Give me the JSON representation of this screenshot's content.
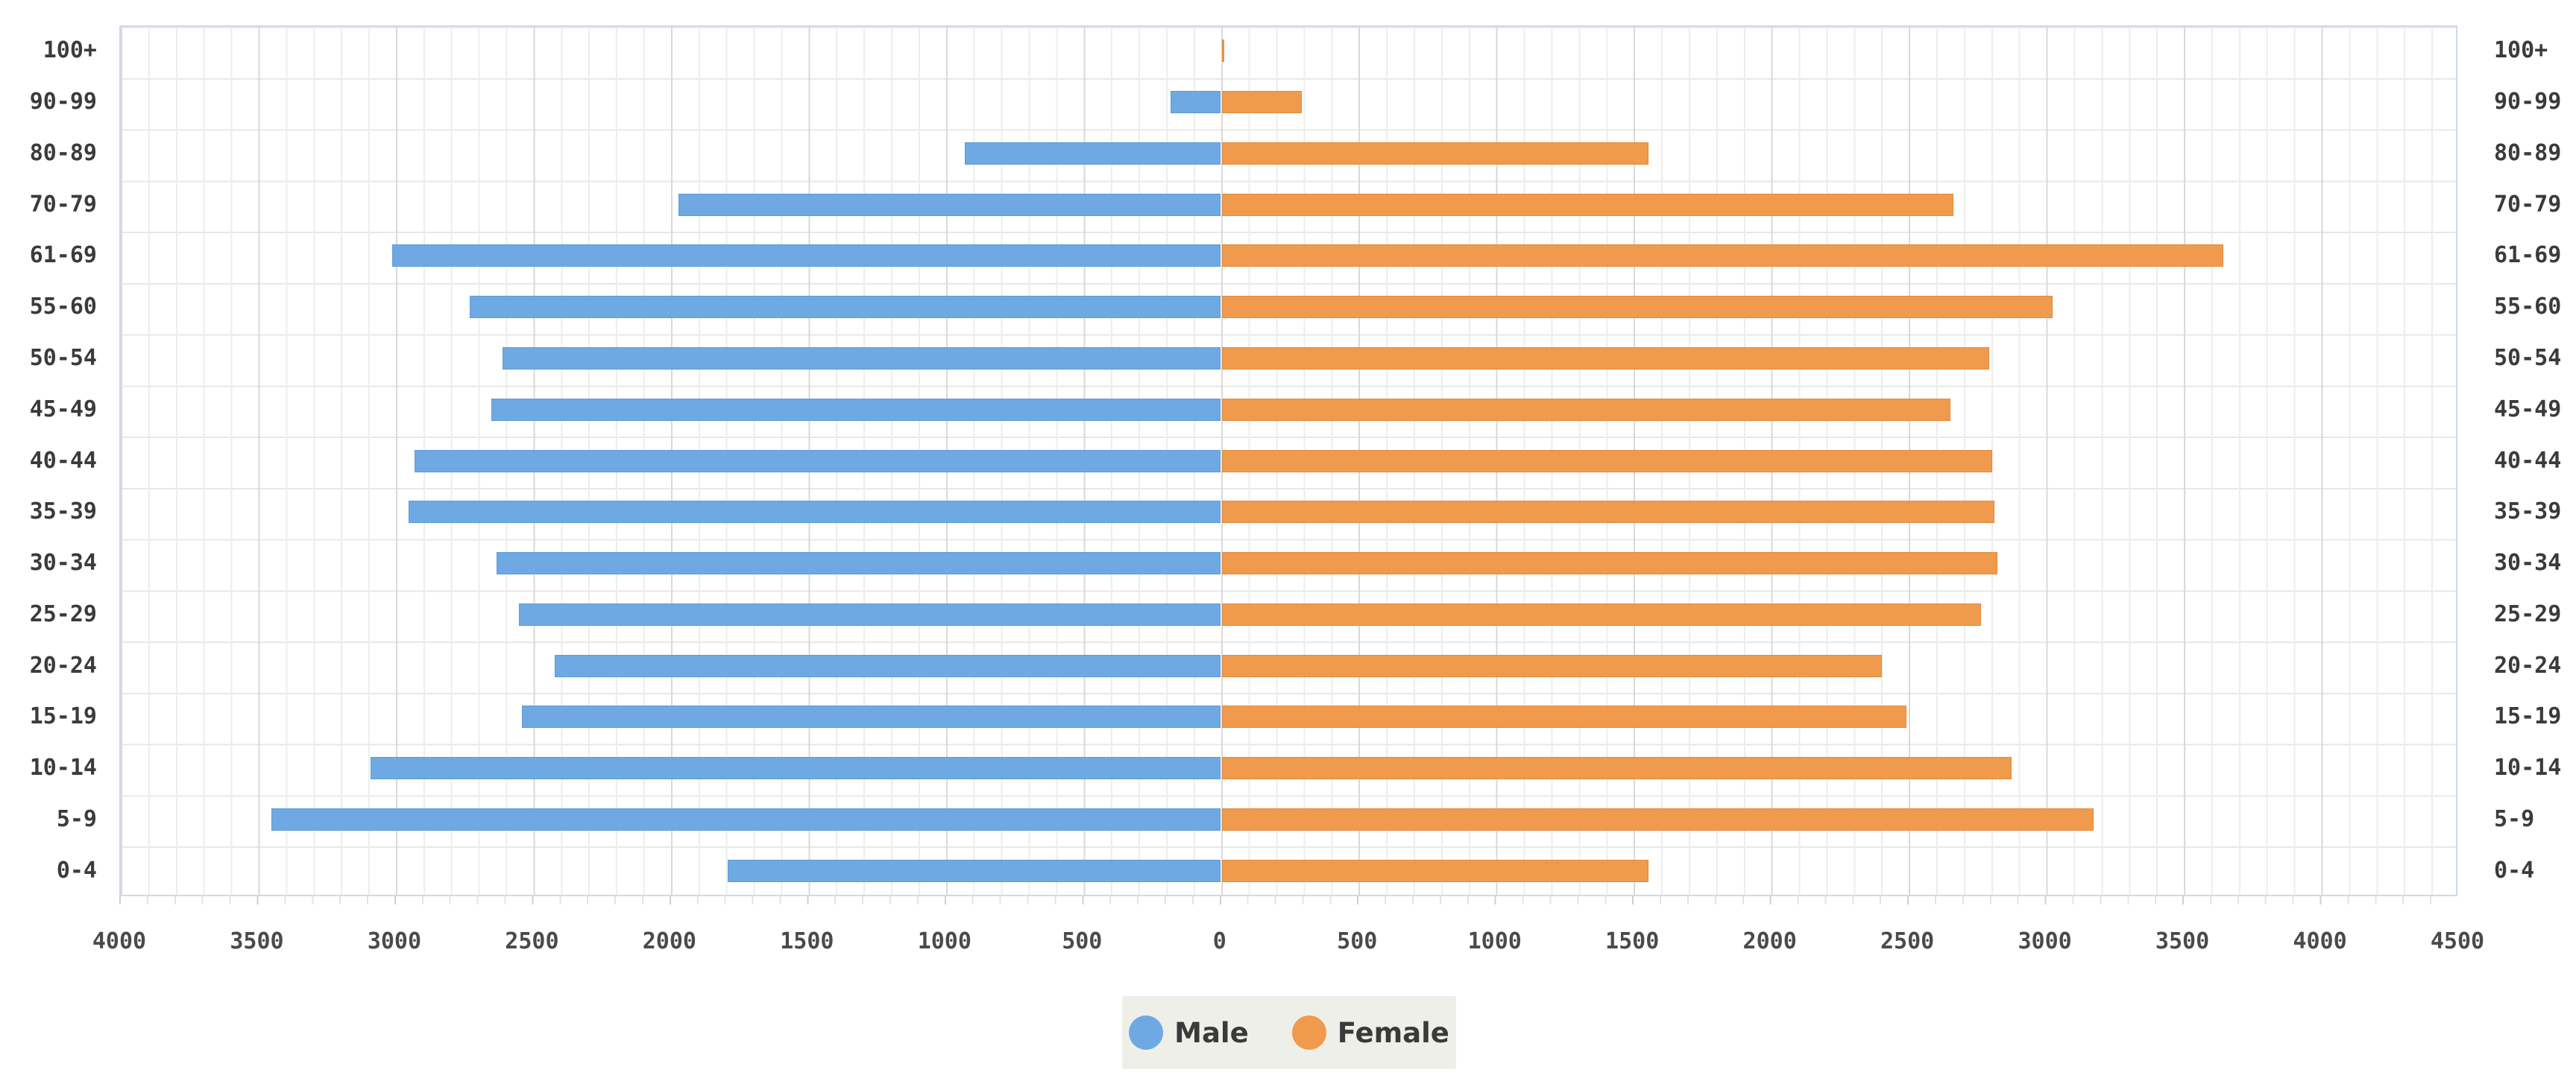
{
  "chart_data": {
    "type": "bar",
    "orientation": "horizontal-pyramid",
    "title": "",
    "categories": [
      "100+",
      "90-99",
      "80-89",
      "70-79",
      "61-69",
      "55-60",
      "50-54",
      "45-49",
      "40-44",
      "35-39",
      "30-34",
      "25-29",
      "20-24",
      "15-19",
      "10-14",
      "5-9",
      "0-4"
    ],
    "series": [
      {
        "name": "Male",
        "side": "left",
        "color": "#6ea9e3",
        "values": [
          0,
          180,
          930,
          1970,
          3010,
          2730,
          2610,
          2650,
          2930,
          2950,
          2630,
          2550,
          2420,
          2540,
          3090,
          3450,
          1790
        ]
      },
      {
        "name": "Female",
        "side": "right",
        "color": "#f09a4e",
        "values": [
          10,
          290,
          1550,
          2660,
          3640,
          3020,
          2790,
          2650,
          2800,
          2810,
          2820,
          2760,
          2400,
          2490,
          2870,
          3170,
          1550
        ]
      }
    ],
    "x_axis": {
      "left_max": 4000,
      "right_max": 4500,
      "tick_interval": 500,
      "minor_interval": 100,
      "tick_labels": [
        "4000",
        "3500",
        "3000",
        "2500",
        "2000",
        "1500",
        "1000",
        "500",
        "0",
        "500",
        "1000",
        "1500",
        "2000",
        "2500",
        "3000",
        "3500",
        "4000",
        "4500"
      ]
    },
    "legend": {
      "position": "bottom-center",
      "background": "#efefe9"
    },
    "grid": {
      "minor_line_color": "#ededed",
      "major_line_color": "#d9d9d9",
      "row_line_color": "#e8e8e8",
      "plot_border_color": "#cfd9ec",
      "grid_on": true
    }
  }
}
